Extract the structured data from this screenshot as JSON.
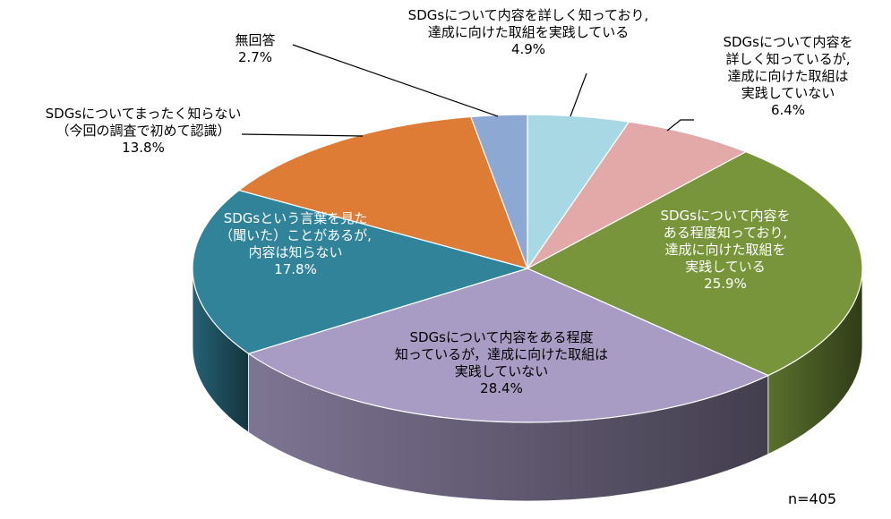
{
  "chart_data": {
    "type": "pie3d",
    "categories": [
      "SDGsについて内容を詳しく知っており,\n達成に向けた取組を実践している",
      "SDGsについて内容を\n詳しく知っているが,\n達成に向けた取組は\n実践していない",
      "SDGsについて内容を\nある程度知っており,\n達成に向けた取組を\n実践している",
      "SDGsについて内容をある程度\n知っているが，達成に向けた取組は\n実践していない",
      "SDGsという言葉を見た\n（聞いた）ことがあるが,\n内容は知らない",
      "SDGsについてまったく知らない\n（今回の調査で初めて認識）",
      "無回答"
    ],
    "values": [
      4.9,
      6.4,
      25.9,
      28.4,
      17.8,
      13.8,
      2.7
    ],
    "value_labels": [
      "4.9%",
      "6.4%",
      "25.9%",
      "28.4%",
      "17.8%",
      "13.8%",
      "2.7%"
    ],
    "colors": [
      "#a8d8e4",
      "#e2a9a8",
      "#78953c",
      "#a89cc4",
      "#31839a",
      "#de7c36",
      "#8ea8d4"
    ],
    "annotation": "n=405"
  }
}
